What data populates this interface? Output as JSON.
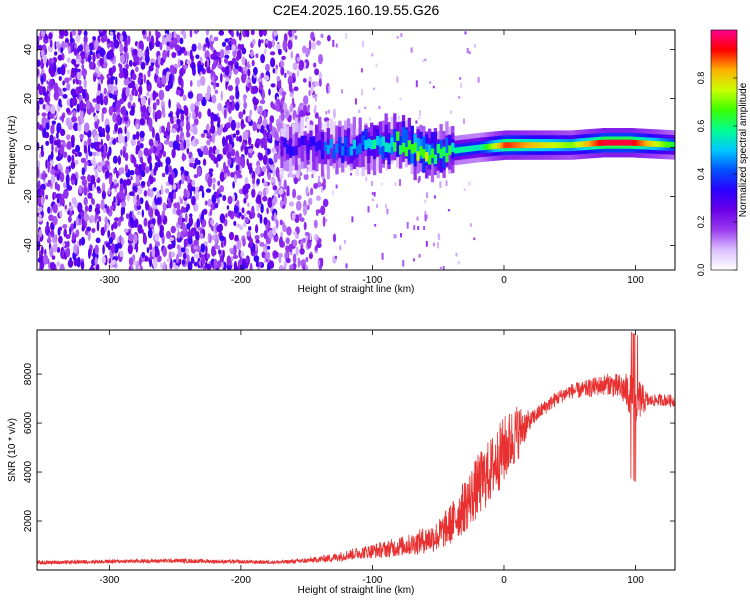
{
  "chart_data": [
    {
      "type": "heatmap",
      "title": "C2E4.2025.160.19.55.G26",
      "xlabel": "Height of straight line (km)",
      "ylabel": "Frequency (Hz)",
      "xlim": [
        -355,
        130
      ],
      "ylim": [
        -50,
        48
      ],
      "xticks": [
        -300,
        -200,
        -100,
        0,
        100
      ],
      "yticks": [
        -40,
        -20,
        0,
        20,
        40
      ],
      "colorbar": {
        "label": "Normalized spectral amplitude",
        "range": [
          0,
          1
        ],
        "ticks": [
          0.0,
          0.2,
          0.4,
          0.6,
          0.8
        ],
        "colors": [
          "#ffffff",
          "#dcc0ff",
          "#9b3cf0",
          "#6a00e8",
          "#2a00ff",
          "#0050ff",
          "#00c8ff",
          "#00ff90",
          "#3cff00",
          "#c8ff00",
          "#ffb000",
          "#ff0000",
          "#ff0090"
        ]
      },
      "description_series": {
        "noise_region_x": [
          -355,
          -170
        ],
        "central_line": [
          {
            "x": -170,
            "f": 0,
            "amplitude": 0.3
          },
          {
            "x": -120,
            "f": 0,
            "amplitude": 0.45
          },
          {
            "x": -80,
            "f": 2,
            "amplitude": 0.6
          },
          {
            "x": -60,
            "f": -3,
            "amplitude": 0.75
          },
          {
            "x": -50,
            "f": -2,
            "amplitude": 0.6
          },
          {
            "x": -20,
            "f": 0,
            "amplitude": 0.55
          },
          {
            "x": 0,
            "f": 1,
            "amplitude": 0.9
          },
          {
            "x": 50,
            "f": 1,
            "amplitude": 0.7
          },
          {
            "x": 75,
            "f": 2,
            "amplitude": 0.95
          },
          {
            "x": 95,
            "f": 2,
            "amplitude": 0.95
          },
          {
            "x": 130,
            "f": 1,
            "amplitude": 0.6
          }
        ]
      }
    },
    {
      "type": "line",
      "xlabel": "Height of straight line (km)",
      "ylabel": "SNR (10 * v/v)",
      "xlim": [
        -355,
        130
      ],
      "ylim": [
        0,
        9800
      ],
      "xticks": [
        -300,
        -200,
        -100,
        0,
        100
      ],
      "yticks": [
        2000,
        4000,
        6000,
        8000
      ],
      "series": [
        {
          "name": "SNR",
          "color": "#e83030",
          "x": [
            -355,
            -300,
            -250,
            -200,
            -170,
            -150,
            -130,
            -110,
            -90,
            -70,
            -50,
            -40,
            -30,
            -20,
            -10,
            0,
            10,
            20,
            30,
            40,
            50,
            60,
            70,
            80,
            90,
            100,
            110,
            120,
            130
          ],
          "y": [
            300,
            350,
            380,
            330,
            320,
            380,
            500,
            700,
            850,
            1050,
            1400,
            1900,
            2600,
            3400,
            4100,
            4900,
            5600,
            6100,
            6600,
            7000,
            7300,
            7350,
            7500,
            7600,
            7400,
            7000,
            6900,
            6950,
            6900
          ],
          "spread": [
            150,
            150,
            170,
            150,
            150,
            200,
            350,
            500,
            700,
            900,
            1300,
            1700,
            2200,
            2600,
            2700,
            2800,
            2400,
            700,
            600,
            600,
            600,
            700,
            800,
            900,
            1200,
            2200,
            500,
            500,
            500
          ]
        }
      ]
    }
  ]
}
